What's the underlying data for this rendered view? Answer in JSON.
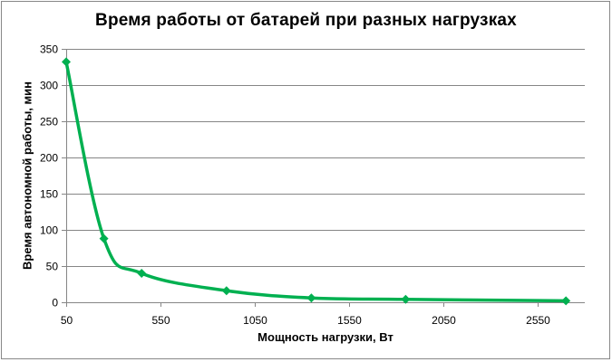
{
  "chart_data": {
    "type": "line",
    "title": "Время работы от батарей при разных нагрузках",
    "xlabel": "Мощность нагрузки, Вт",
    "ylabel": "Время автономной работы, мин",
    "x": [
      50,
      250,
      450,
      900,
      1350,
      1850,
      2700
    ],
    "series": [
      {
        "name": "Время работы",
        "values": [
          332,
          88,
          40,
          16,
          6,
          4,
          2
        ],
        "color": "#00B050",
        "marker": "diamond",
        "smooth": true
      }
    ],
    "xlim": [
      50,
      2800
    ],
    "ylim": [
      0,
      350
    ],
    "x_ticks": [
      50,
      550,
      1050,
      1550,
      2050,
      2550
    ],
    "y_ticks": [
      0,
      50,
      100,
      150,
      200,
      250,
      300,
      350
    ],
    "grid": {
      "horizontal": true,
      "vertical": false,
      "color": "#868686"
    },
    "legend": "none"
  }
}
